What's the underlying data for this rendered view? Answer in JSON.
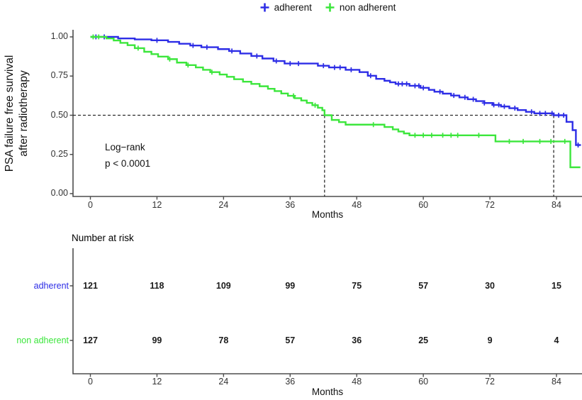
{
  "legend": {
    "items": [
      {
        "label": "adherent",
        "color": "#2D2DE6"
      },
      {
        "label": "non adherent",
        "color": "#3CE63C"
      }
    ]
  },
  "y_axis": {
    "label_line1": "PSA failure free survival",
    "label_line2": "after radiotherapy",
    "tick_labels": [
      "1.00",
      "0.75",
      "0.50",
      "0.25",
      "0.00"
    ],
    "tick_values": [
      1.0,
      0.75,
      0.5,
      0.25,
      0.0
    ]
  },
  "x_axis": {
    "label": "Months",
    "ticks": [
      0,
      12,
      24,
      36,
      48,
      60,
      72,
      84
    ]
  },
  "annotation": {
    "line1": "Log−rank",
    "line2": "p < 0.0001"
  },
  "risk_table": {
    "title": "Number at risk",
    "x_label": "Months",
    "ticks": [
      0,
      12,
      24,
      36,
      48,
      60,
      72,
      84
    ],
    "rows": [
      {
        "label": "adherent",
        "color": "#2D2DE6",
        "counts": [
          121,
          118,
          109,
          99,
          75,
          57,
          30,
          15
        ]
      },
      {
        "label": "non adherent",
        "color": "#3CE63C",
        "counts": [
          127,
          99,
          78,
          57,
          36,
          25,
          9,
          4
        ]
      }
    ]
  },
  "chart_data": {
    "type": "line",
    "subtype": "kaplan-meier-step",
    "title": "",
    "xlabel": "Months",
    "ylabel": "PSA failure free survival after radiotherapy",
    "xlim": [
      0,
      88.5
    ],
    "ylim": [
      0,
      1.0
    ],
    "xticks": [
      0,
      12,
      24,
      36,
      48,
      60,
      72,
      84
    ],
    "yticks": [
      1.0,
      0.75,
      0.5,
      0.25,
      0.0
    ],
    "grid": false,
    "legend_position": "top",
    "annotation_text": "Log−rank p < 0.0001",
    "median_survival": {
      "h_line_y": 0.5,
      "v_lines_x": [
        42.2,
        83.5
      ]
    },
    "axis_color": "#4d4d4d",
    "dashed_color": "#2b2b2b",
    "series": [
      {
        "name": "adherent",
        "color": "#2D2DE6",
        "steps": [
          [
            0,
            1.0
          ],
          [
            5,
            0.99
          ],
          [
            8,
            0.984
          ],
          [
            11,
            0.978
          ],
          [
            14,
            0.968
          ],
          [
            16,
            0.956
          ],
          [
            18,
            0.945
          ],
          [
            20,
            0.934
          ],
          [
            23,
            0.922
          ],
          [
            25,
            0.91
          ],
          [
            27,
            0.894
          ],
          [
            29,
            0.878
          ],
          [
            31,
            0.862
          ],
          [
            33,
            0.846
          ],
          [
            35,
            0.83
          ],
          [
            41,
            0.816
          ],
          [
            43,
            0.805
          ],
          [
            46,
            0.79
          ],
          [
            48.5,
            0.775
          ],
          [
            50,
            0.752
          ],
          [
            51.5,
            0.732
          ],
          [
            53,
            0.72
          ],
          [
            54,
            0.71
          ],
          [
            55,
            0.7
          ],
          [
            57.5,
            0.688
          ],
          [
            59.5,
            0.675
          ],
          [
            61,
            0.662
          ],
          [
            62,
            0.65
          ],
          [
            63.5,
            0.638
          ],
          [
            65,
            0.626
          ],
          [
            66.5,
            0.614
          ],
          [
            68,
            0.602
          ],
          [
            69.5,
            0.59
          ],
          [
            71,
            0.578
          ],
          [
            72.5,
            0.566
          ],
          [
            74,
            0.556
          ],
          [
            75.5,
            0.545
          ],
          [
            77,
            0.533
          ],
          [
            78.5,
            0.522
          ],
          [
            80,
            0.512
          ],
          [
            83.5,
            0.5
          ],
          [
            85.8,
            0.458
          ],
          [
            86.9,
            0.405
          ],
          [
            87.5,
            0.31
          ],
          [
            88.4,
            0.31
          ]
        ],
        "censor_times": [
          1,
          2.5,
          12,
          18.5,
          21,
          25.5,
          30,
          33.5,
          36,
          37.5,
          42,
          44,
          45,
          47,
          50.5,
          55.5,
          56.2,
          57,
          58.5,
          59.2,
          60,
          63,
          65.5,
          67.5,
          69,
          71,
          72.7,
          73.6,
          74.6,
          76.5,
          79.5,
          81,
          82,
          83.2,
          84.4,
          85.3,
          87.9
        ]
      },
      {
        "name": "non adherent",
        "color": "#3CE63C",
        "steps": [
          [
            0,
            1.0
          ],
          [
            2.9,
            0.99
          ],
          [
            4.2,
            0.977
          ],
          [
            5.4,
            0.962
          ],
          [
            6.7,
            0.947
          ],
          [
            8,
            0.928
          ],
          [
            9.7,
            0.905
          ],
          [
            11,
            0.89
          ],
          [
            12.2,
            0.874
          ],
          [
            14,
            0.858
          ],
          [
            15.6,
            0.836
          ],
          [
            17.3,
            0.82
          ],
          [
            19,
            0.805
          ],
          [
            20.3,
            0.79
          ],
          [
            21.6,
            0.775
          ],
          [
            23.3,
            0.76
          ],
          [
            24.6,
            0.745
          ],
          [
            25.9,
            0.73
          ],
          [
            27.5,
            0.714
          ],
          [
            29,
            0.7
          ],
          [
            30.5,
            0.685
          ],
          [
            32,
            0.669
          ],
          [
            33.2,
            0.654
          ],
          [
            34.4,
            0.639
          ],
          [
            35.6,
            0.624
          ],
          [
            36.8,
            0.609
          ],
          [
            38,
            0.594
          ],
          [
            39,
            0.579
          ],
          [
            40,
            0.564
          ],
          [
            41,
            0.548
          ],
          [
            41.8,
            0.532
          ],
          [
            42.2,
            0.5
          ],
          [
            43.5,
            0.47
          ],
          [
            44.8,
            0.456
          ],
          [
            46,
            0.44
          ],
          [
            53,
            0.425
          ],
          [
            54.5,
            0.41
          ],
          [
            55.5,
            0.396
          ],
          [
            56.5,
            0.384
          ],
          [
            57.5,
            0.372
          ],
          [
            73,
            0.333
          ],
          [
            86.5,
            0.168
          ],
          [
            88.3,
            0.168
          ]
        ],
        "censor_times": [
          0.5,
          1.5,
          8.6,
          14.3,
          17.6,
          21.9,
          36.6,
          40.5,
          51,
          58.5,
          60,
          61.5,
          63.5,
          65,
          66.2,
          70,
          75.5,
          78,
          81,
          83,
          85.5
        ]
      }
    ],
    "risk_table": {
      "categories": [
        0,
        12,
        24,
        36,
        48,
        60,
        72,
        84
      ],
      "series": [
        {
          "name": "adherent",
          "values": [
            121,
            118,
            109,
            99,
            75,
            57,
            30,
            15
          ]
        },
        {
          "name": "non adherent",
          "values": [
            127,
            99,
            78,
            57,
            36,
            25,
            9,
            4
          ]
        }
      ]
    }
  }
}
